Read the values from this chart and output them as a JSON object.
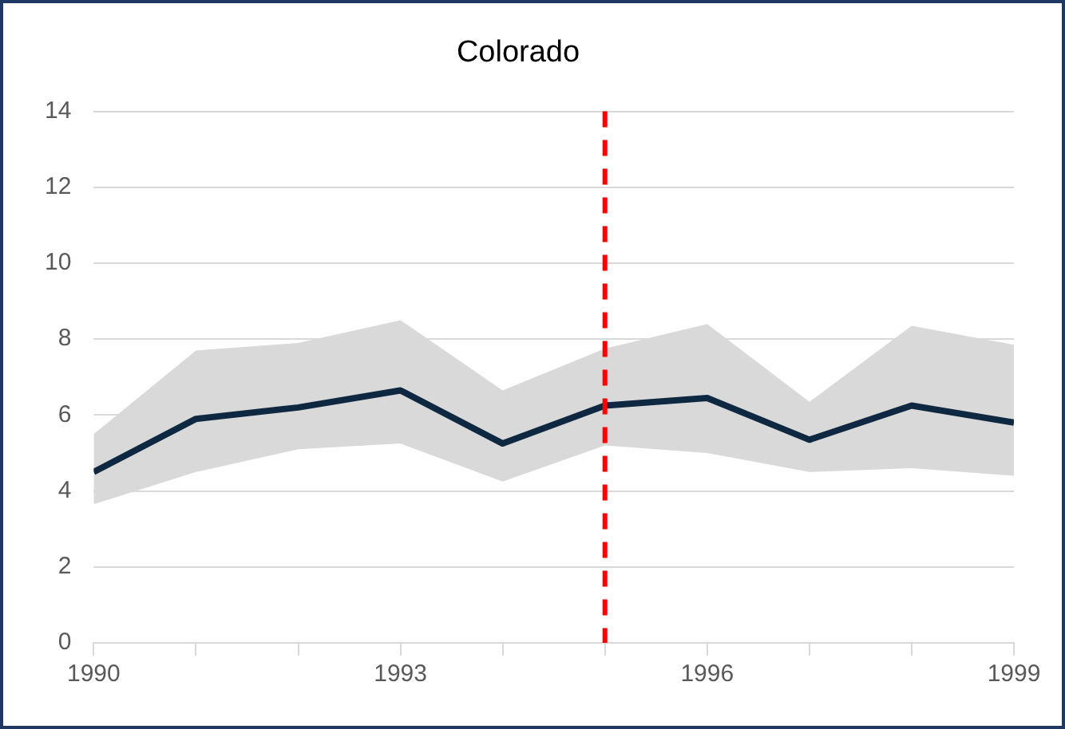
{
  "chart_data": {
    "type": "line",
    "title": "Colorado",
    "x": [
      1990,
      1991,
      1992,
      1993,
      1994,
      1995,
      1996,
      1997,
      1998,
      1999
    ],
    "series": [
      {
        "color": "#0e2841",
        "values": [
          4.5,
          5.9,
          6.2,
          6.65,
          5.25,
          6.25,
          6.45,
          5.35,
          6.25,
          5.8
        ],
        "lower": [
          3.65,
          4.5,
          5.1,
          5.25,
          4.25,
          5.2,
          5.0,
          4.5,
          4.6,
          4.4
        ],
        "upper": [
          5.5,
          7.7,
          7.9,
          8.5,
          6.65,
          7.75,
          8.4,
          6.35,
          8.35,
          7.85
        ]
      }
    ],
    "xlim": [
      1990,
      1999
    ],
    "xticks": [
      1990,
      {
        "value": 1991,
        "label": null
      },
      {
        "value": 1992,
        "label": null
      },
      1993,
      {
        "value": 1994,
        "label": null
      },
      {
        "value": 1995,
        "label": null
      },
      1996,
      {
        "value": 1997,
        "label": null
      },
      {
        "value": 1998,
        "label": null
      },
      1999
    ],
    "ylim": [
      0,
      14
    ],
    "yticks": [
      0,
      2,
      4,
      6,
      8,
      10,
      12,
      14
    ],
    "grid": "y",
    "legend": false,
    "marker": "none",
    "line_style": "solid",
    "ref_lines": [
      {
        "axis": "x",
        "value": 1995,
        "color": "#ff0000",
        "line_style": "dashed"
      }
    ]
  }
}
